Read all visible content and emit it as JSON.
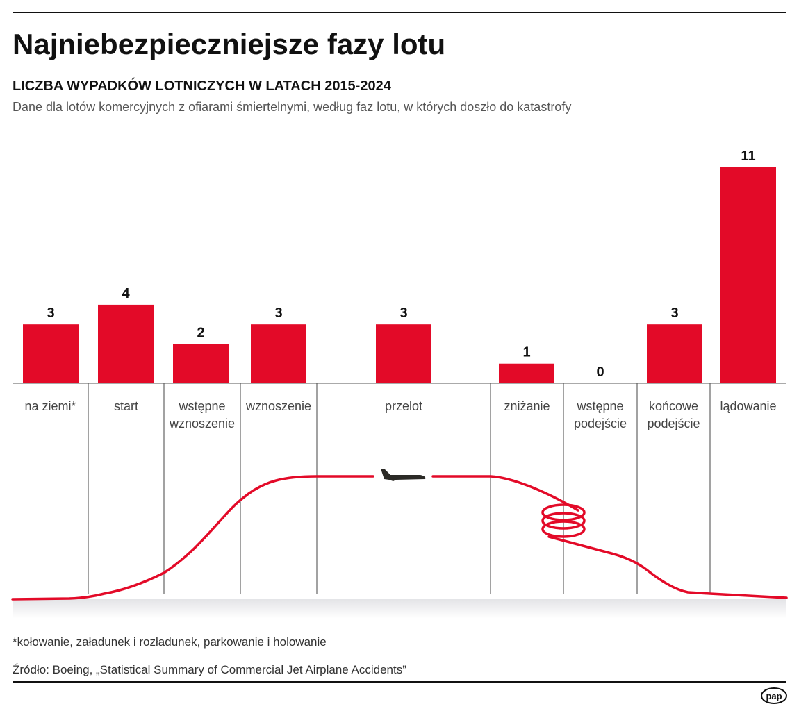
{
  "title": "Najniebezpieczniejsze fazy lotu",
  "subtitle": "LICZBA WYPADKÓW LOTNICZYCH W LATACH 2015-2024",
  "description": "Dane dla lotów komercyjnych z ofiarami śmiertelnymi, według faz lotu, w których doszło do katastrofy",
  "footnote": "*kołowanie, załadunek i rozładunek, parkowanie i holowanie",
  "source": "Źródło: Boeing, „Statistical Summary of Commercial Jet Airplane Accidents”",
  "logo": "pap",
  "colors": {
    "bar": "#e30a28",
    "path": "#e30a28",
    "text": "#111111",
    "muted": "#555555"
  },
  "icons": {
    "plane": "airplane-icon"
  },
  "chart_data": {
    "type": "bar",
    "categories": [
      [
        "na ziemi*"
      ],
      [
        "start"
      ],
      [
        "wstępne",
        "wznoszenie"
      ],
      [
        "wznoszenie"
      ],
      [
        "przelot"
      ],
      [
        "zniżanie"
      ],
      [
        "wstępne",
        "podejście"
      ],
      [
        "końcowe",
        "podejście"
      ],
      [
        "lądowanie"
      ]
    ],
    "values": [
      3,
      4,
      2,
      3,
      3,
      1,
      0,
      3,
      11
    ],
    "data_labels": [
      "3",
      "4",
      "2",
      "3",
      "3",
      "1",
      "0",
      "3",
      "11"
    ],
    "ylim": [
      0,
      11
    ],
    "grid": false
  }
}
